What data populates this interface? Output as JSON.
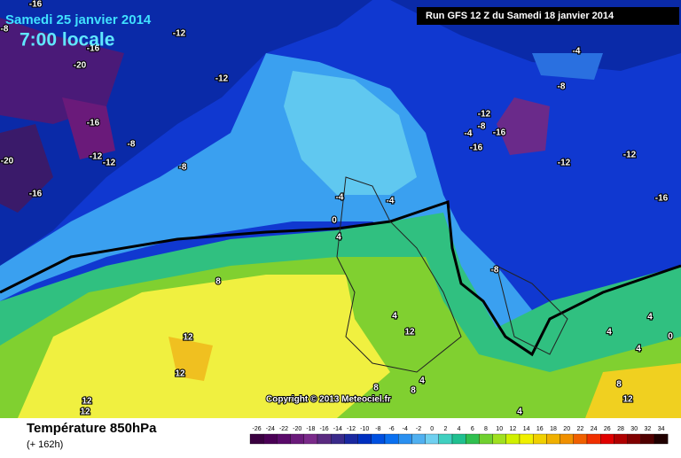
{
  "header": {
    "date": "Samedi 25 janvier 2014",
    "time": "7:00 locale",
    "run": "Run GFS 12 Z du Samedi 18 janvier 2014"
  },
  "footer": {
    "title": "Température 850hPa",
    "lead": "(+ 162h)",
    "copyright": "Copyright © 2013 Meteociel.fr"
  },
  "legend": {
    "ticks": [
      -26,
      -24,
      -22,
      -20,
      -18,
      -16,
      -14,
      -12,
      -10,
      -8,
      -6,
      -4,
      -2,
      0,
      2,
      4,
      6,
      8,
      10,
      12,
      14,
      16,
      18,
      20,
      22,
      24,
      26,
      28,
      30,
      32,
      34
    ],
    "colors": [
      "#3a0040",
      "#4a0055",
      "#5a0a6a",
      "#6a1a7a",
      "#7a2a8a",
      "#5a2a80",
      "#3a2a8a",
      "#1a28a0",
      "#0030c0",
      "#0050e0",
      "#0a70f0",
      "#2a90f0",
      "#50b0f0",
      "#70d0f0",
      "#40d0c0",
      "#20c090",
      "#30c050",
      "#70d030",
      "#a0e020",
      "#d0f000",
      "#f0f000",
      "#f0d000",
      "#f0b000",
      "#f09000",
      "#f06000",
      "#f03000",
      "#e00000",
      "#b00000",
      "#800000",
      "#500000",
      "#200000"
    ]
  },
  "map_labels": [
    -16,
    -8,
    -12,
    -16,
    -20,
    -12,
    -16,
    -8,
    -12,
    -12,
    -20,
    -8,
    -16,
    -4,
    -8,
    -12,
    -8,
    -4,
    -16,
    -16,
    -12,
    -12,
    -16,
    -4,
    -4,
    0,
    4,
    8,
    -8,
    4,
    12,
    12,
    12,
    4,
    4,
    4,
    0,
    8,
    8,
    4,
    8,
    12,
    12,
    12,
    4
  ]
}
